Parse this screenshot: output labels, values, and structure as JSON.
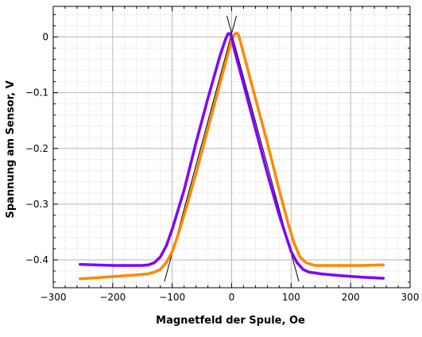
{
  "chart_data": {
    "type": "line",
    "title": "",
    "xlabel": "Magnetfeld der Spule, Oe",
    "ylabel": "Spannung am Sensor, V",
    "xlim": [
      -300,
      300
    ],
    "ylim": [
      -0.45,
      0.055
    ],
    "xticks": [
      -300,
      -200,
      -100,
      0,
      100,
      200,
      300
    ],
    "yticks": [
      0,
      -0.1,
      -0.2,
      -0.3,
      -0.4
    ],
    "xtick_labels": [
      "−300",
      "−200",
      "−100",
      "0",
      "100",
      "200",
      "300"
    ],
    "ytick_labels": [
      "0",
      "−0.1",
      "−0.2",
      "−0.3",
      "−0.4"
    ],
    "grid": "major solid gray, minor dotted light gray",
    "legend": "none",
    "series": [
      {
        "color": "#ff8800",
        "x": [
          -255,
          -240,
          -200,
          -160,
          -140,
          -130,
          -120,
          -110,
          -100,
          -90,
          -80,
          -60,
          -40,
          -20,
          0,
          5,
          8,
          10,
          12,
          20,
          40,
          60,
          80,
          95,
          105,
          115,
          125,
          140,
          180,
          220,
          255
        ],
        "y": [
          -0.434,
          -0.433,
          -0.43,
          -0.427,
          -0.425,
          -0.422,
          -0.417,
          -0.405,
          -0.385,
          -0.355,
          -0.32,
          -0.245,
          -0.165,
          -0.085,
          -0.005,
          0.005,
          0.007,
          0.006,
          0.002,
          -0.03,
          -0.11,
          -0.19,
          -0.275,
          -0.335,
          -0.37,
          -0.395,
          -0.405,
          -0.41,
          -0.41,
          -0.41,
          -0.409
        ]
      },
      {
        "color": "#8000ff",
        "x": [
          -255,
          -230,
          -200,
          -170,
          -150,
          -140,
          -130,
          -120,
          -110,
          -100,
          -80,
          -60,
          -40,
          -20,
          -10,
          -6,
          -3,
          0,
          5,
          10,
          20,
          40,
          60,
          80,
          100,
          110,
          120,
          130,
          150,
          180,
          220,
          255
        ],
        "y": [
          -0.408,
          -0.409,
          -0.41,
          -0.41,
          -0.41,
          -0.409,
          -0.405,
          -0.395,
          -0.375,
          -0.345,
          -0.275,
          -0.19,
          -0.11,
          -0.035,
          -0.003,
          0.006,
          0.006,
          0.0,
          -0.025,
          -0.045,
          -0.085,
          -0.165,
          -0.245,
          -0.32,
          -0.385,
          -0.405,
          -0.417,
          -0.422,
          -0.425,
          -0.428,
          -0.431,
          -0.433
        ]
      }
    ],
    "fit_lines": [
      {
        "color": "#000000",
        "x": [
          -113,
          8
        ],
        "y": [
          -0.439,
          0.038
        ]
      },
      {
        "color": "#000000",
        "x": [
          -8,
          113
        ],
        "y": [
          0.038,
          -0.439
        ]
      }
    ]
  }
}
